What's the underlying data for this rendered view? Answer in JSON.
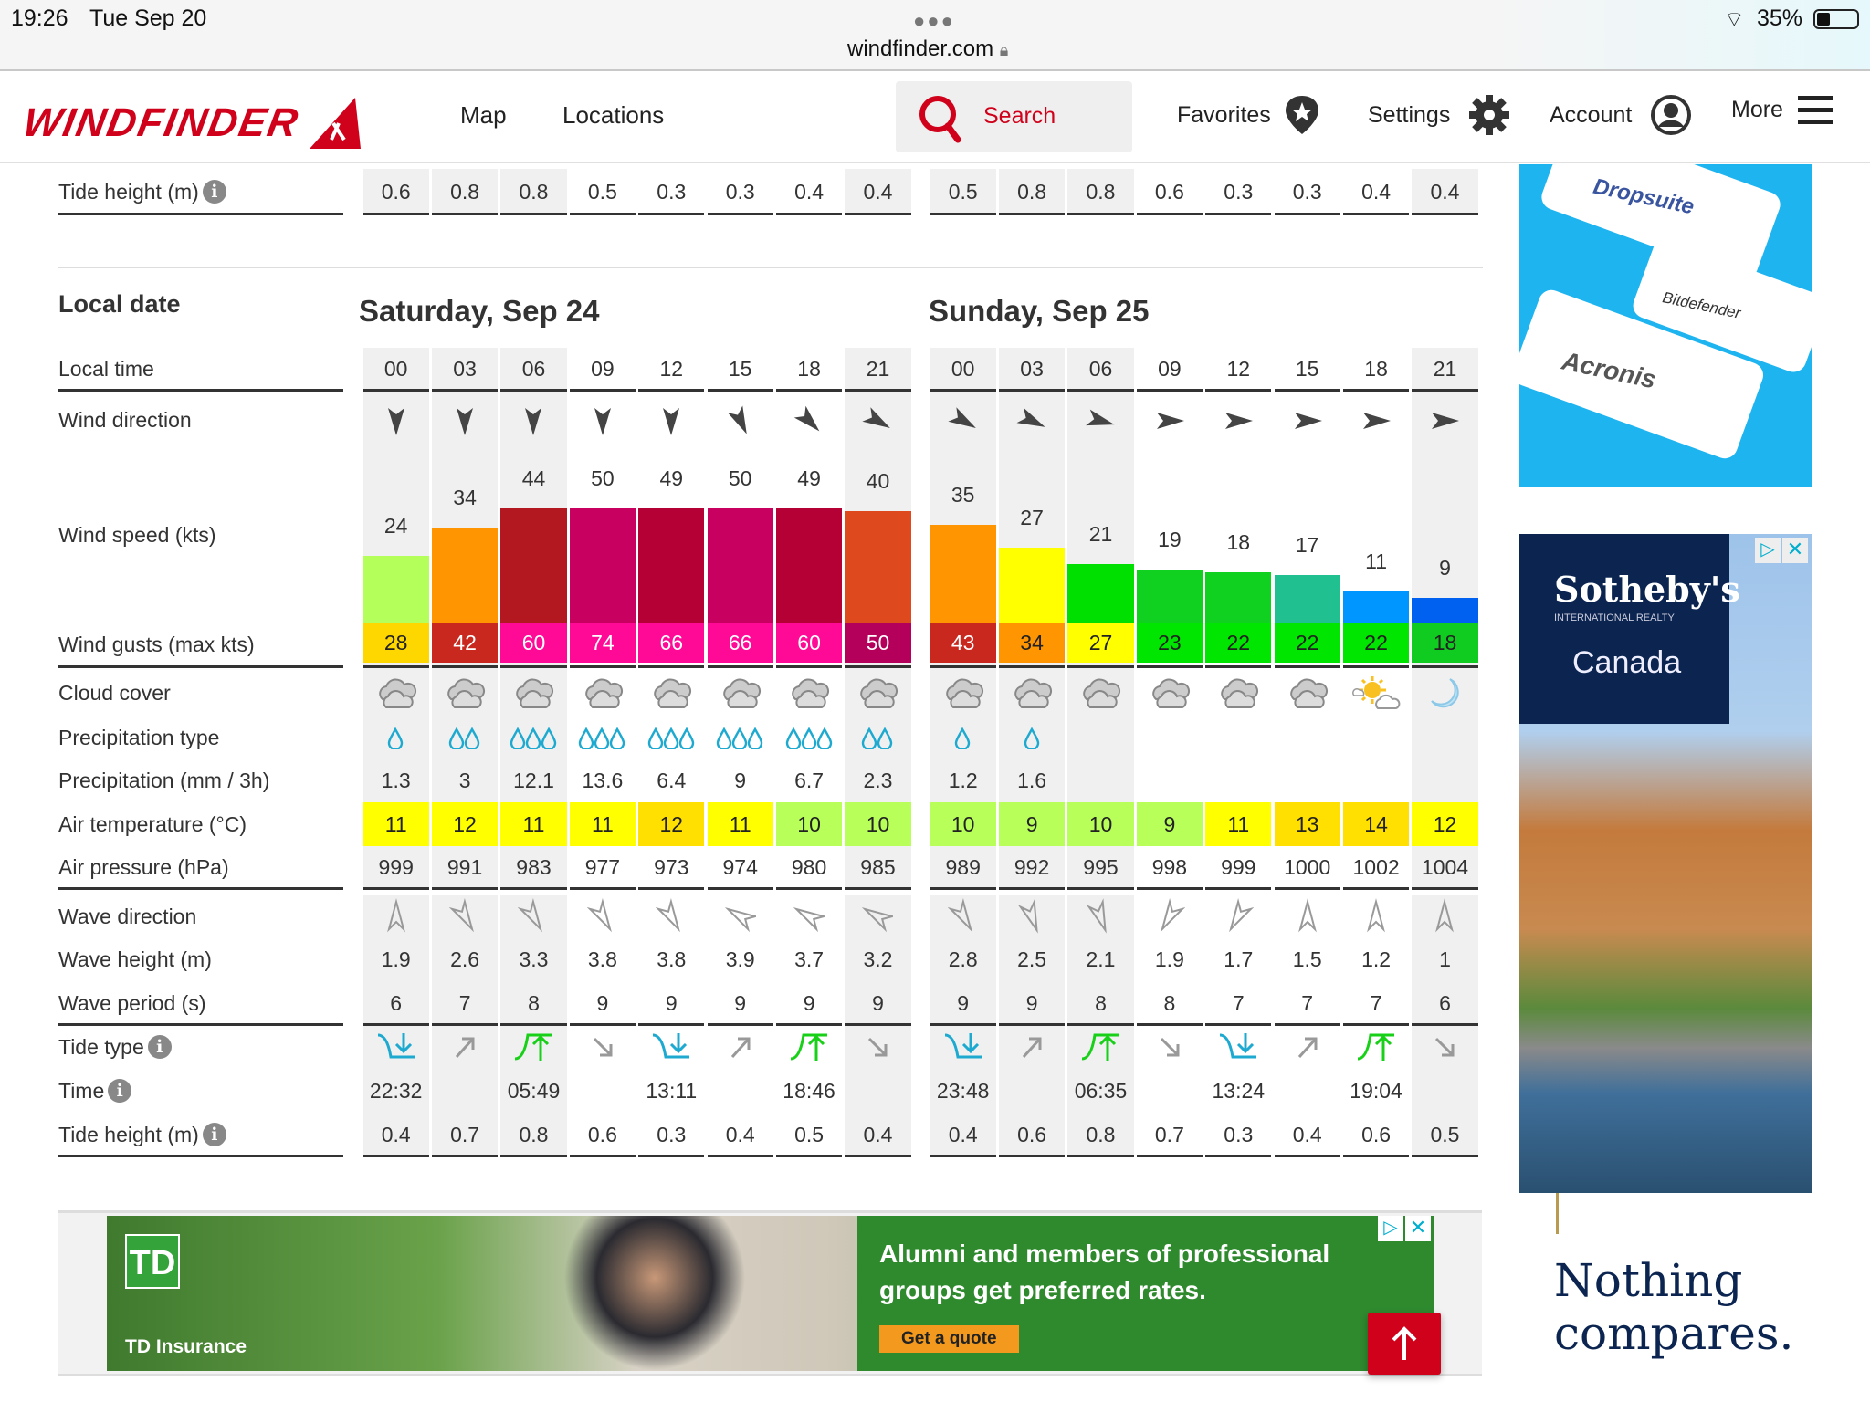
{
  "status_bar": {
    "time": "19:26",
    "date": "Tue Sep 20",
    "url": "windfinder.com",
    "battery": "35%"
  },
  "nav": {
    "logo": "WINDFINDER",
    "map": "Map",
    "locations": "Locations",
    "search": "Search",
    "favorites": "Favorites",
    "settings": "Settings",
    "account": "Account",
    "more": "More"
  },
  "colors": {
    "brand": "#d0021b",
    "grey_col": "#f0f0f0"
  },
  "prev_tide": {
    "label": "Tide height (m)",
    "values": [
      [
        "0.6",
        "0.8",
        "0.8",
        "0.5",
        "0.3",
        "0.3",
        "0.4",
        "0.4"
      ],
      [
        "0.5",
        "0.8",
        "0.8",
        "0.6",
        "0.3",
        "0.3",
        "0.4",
        "0.4"
      ]
    ]
  },
  "labels": {
    "local_date": "Local date",
    "local_time": "Local time",
    "wind_direction": "Wind direction",
    "wind_speed": "Wind speed (kts)",
    "wind_gusts": "Wind gusts (max kts)",
    "cloud_cover": "Cloud cover",
    "precip_type": "Precipitation type",
    "precip": "Precipitation (mm / 3h)",
    "air_temp": "Air temperature (°C)",
    "air_pressure": "Air pressure (hPa)",
    "wave_direction": "Wave direction",
    "wave_height": "Wave height (m)",
    "wave_period": "Wave period (s)",
    "tide_type": "Tide type",
    "time": "Time",
    "tide_height": "Tide height (m)"
  },
  "days": [
    {
      "title": "Saturday, Sep 24",
      "times": [
        "00",
        "03",
        "06",
        "09",
        "12",
        "15",
        "18",
        "21"
      ],
      "wind_from_deg": [
        0,
        0,
        0,
        0,
        0,
        335,
        315,
        300
      ],
      "wind_speed": [
        24,
        34,
        44,
        50,
        49,
        50,
        49,
        40
      ],
      "wind_speed_colors": [
        "#b5ff5a",
        "#ff9500",
        "#b3171f",
        "#c8005f",
        "#b40034",
        "#c8005f",
        "#b40034",
        "#de4a1e"
      ],
      "wind_gusts": [
        28,
        42,
        60,
        74,
        66,
        66,
        60,
        50
      ],
      "wind_gust_colors": [
        "#ffd700",
        "#c8281e",
        "#ff0a96",
        "#ff0a96",
        "#ff0a96",
        "#ff0a96",
        "#ff0a96",
        "#b4005a"
      ],
      "wind_gust_text": [
        "#222",
        "#fff",
        "#fff",
        "#fff",
        "#fff",
        "#fff",
        "#fff",
        "#fff"
      ],
      "cloud": [
        "overcast",
        "overcast",
        "overcast",
        "overcast",
        "overcast",
        "overcast",
        "overcast",
        "overcast"
      ],
      "precip_drops": [
        1,
        2,
        3,
        3,
        3,
        3,
        3,
        2
      ],
      "precip": [
        "1.3",
        "3",
        "12.1",
        "13.6",
        "6.4",
        "9",
        "6.7",
        "2.3"
      ],
      "air_temp": [
        11,
        12,
        11,
        11,
        12,
        11,
        10,
        10
      ],
      "air_temp_colors": [
        "#ffff00",
        "#ffff00",
        "#ffff00",
        "#ffff00",
        "#ffe000",
        "#ffff00",
        "#b8ff5a",
        "#b8ff5a"
      ],
      "air_pressure": [
        999,
        991,
        983,
        977,
        973,
        974,
        980,
        985
      ],
      "wave_arrow_deg": [
        0,
        150,
        150,
        150,
        150,
        300,
        300,
        300
      ],
      "wave_height": [
        "1.9",
        "2.6",
        "3.3",
        "3.8",
        "3.8",
        "3.9",
        "3.7",
        "3.2"
      ],
      "wave_period": [
        6,
        7,
        8,
        9,
        9,
        9,
        9,
        9
      ],
      "tide_type": [
        "low",
        "rising",
        "high",
        "falling",
        "low",
        "rising",
        "high",
        "falling"
      ],
      "tide_time": [
        "22:32",
        "",
        "05:49",
        "",
        "13:11",
        "",
        "18:46",
        ""
      ],
      "tide_height": [
        "0.4",
        "0.7",
        "0.8",
        "0.6",
        "0.3",
        "0.4",
        "0.5",
        "0.4"
      ]
    },
    {
      "title": "Sunday, Sep 25",
      "times": [
        "00",
        "03",
        "06",
        "09",
        "12",
        "15",
        "18",
        "21"
      ],
      "wind_from_deg": [
        300,
        295,
        285,
        270,
        270,
        270,
        270,
        270
      ],
      "wind_speed": [
        35,
        27,
        21,
        19,
        18,
        17,
        11,
        9
      ],
      "wind_speed_colors": [
        "#ff9500",
        "#ffff00",
        "#00e000",
        "#10d020",
        "#10d020",
        "#20c090",
        "#0096ff",
        "#0060f0"
      ],
      "wind_gusts": [
        43,
        34,
        27,
        23,
        22,
        22,
        22,
        18
      ],
      "wind_gust_colors": [
        "#c8281e",
        "#ff9500",
        "#ffff00",
        "#00e600",
        "#00e600",
        "#00e600",
        "#00e600",
        "#10cc20"
      ],
      "wind_gust_text": [
        "#fff",
        "#222",
        "#222",
        "#222",
        "#222",
        "#222",
        "#222",
        "#222"
      ],
      "cloud": [
        "overcast",
        "overcast",
        "overcast",
        "overcast",
        "overcast",
        "overcast",
        "partly-sunny",
        "clear-night"
      ],
      "precip_drops": [
        1,
        1,
        0,
        0,
        0,
        0,
        0,
        0
      ],
      "precip": [
        "1.2",
        "1.6",
        "",
        "",
        "",
        "",
        "",
        ""
      ],
      "air_temp": [
        10,
        9,
        10,
        9,
        11,
        13,
        14,
        12
      ],
      "air_temp_colors": [
        "#b8ff5a",
        "#b8ff5a",
        "#b8ff5a",
        "#b8ff5a",
        "#ffff00",
        "#ffe000",
        "#ffe000",
        "#ffff00"
      ],
      "air_pressure": [
        989,
        992,
        995,
        998,
        999,
        1000,
        1002,
        1004
      ],
      "wave_arrow_deg": [
        150,
        160,
        160,
        210,
        210,
        0,
        0,
        0
      ],
      "wave_height": [
        "2.8",
        "2.5",
        "2.1",
        "1.9",
        "1.7",
        "1.5",
        "1.2",
        "1"
      ],
      "wave_period": [
        9,
        9,
        8,
        8,
        7,
        7,
        7,
        6
      ],
      "tide_type": [
        "low",
        "rising",
        "high",
        "falling",
        "low",
        "rising",
        "high",
        "falling"
      ],
      "tide_time": [
        "23:48",
        "",
        "06:35",
        "",
        "13:24",
        "",
        "19:04",
        ""
      ],
      "tide_height": [
        "0.4",
        "0.6",
        "0.8",
        "0.7",
        "0.3",
        "0.4",
        "0.6",
        "0.5"
      ]
    }
  ],
  "ads": {
    "top_right": [
      "Dropsuite",
      "Bitdefender",
      "Acronis"
    ],
    "right": {
      "brand": "Sotheby's",
      "sub": "INTERNATIONAL REALTY",
      "region": "Canada",
      "tagline_1": "Nothing",
      "tagline_2": "compares."
    },
    "bottom": {
      "logo": "TD",
      "brand": "TD Insurance",
      "headline_1": "Alumni and members of professional",
      "headline_2": "groups get preferred rates.",
      "cta": "Get a quote"
    }
  }
}
